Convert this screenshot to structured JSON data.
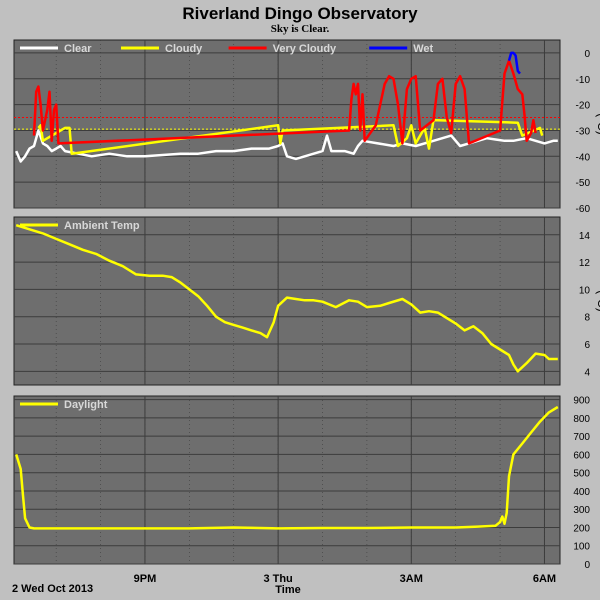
{
  "title": "Riverland Dingo Observatory",
  "subtitle": "Sky is Clear.",
  "date_label": "2 Wed Oct 2013",
  "x_axis_label": "Time",
  "x_ticks": [
    {
      "label": "9PM",
      "t": 21
    },
    {
      "label": "3 Thu",
      "t": 24
    },
    {
      "label": "3AM",
      "t": 27
    },
    {
      "label": "6AM",
      "t": 30
    }
  ],
  "colors": {
    "plot_bg": "#6e6e6e",
    "grid": "#3c3c3c",
    "clear": "#ffffff",
    "cloudy": "#ffff00",
    "very_cloudy": "#ff0000",
    "wet": "#0000ff",
    "temp": "#ffff00",
    "daylight": "#ffff00"
  },
  "chart_data": [
    {
      "type": "line",
      "name": "sky",
      "y_unit": "(°C)",
      "ylim": [
        -60,
        5
      ],
      "yticks": [
        0,
        -10,
        -20,
        -30,
        -40,
        -50,
        -60
      ],
      "xlim": [
        18.05,
        30.35
      ],
      "grid": true,
      "legend": {
        "placement": "top-left",
        "entries": [
          "Clear",
          "Cloudy",
          "Very Cloudy",
          "Wet"
        ]
      },
      "thresholds": [
        {
          "value": -25,
          "color": "#ff0000"
        },
        {
          "value": -29.5,
          "color": "#ffff00"
        }
      ],
      "series": [
        {
          "name": "Clear",
          "color_key": "clear",
          "points": [
            [
              18.1,
              -38
            ],
            [
              18.2,
              -42
            ],
            [
              18.3,
              -40
            ],
            [
              18.4,
              -37
            ],
            [
              18.5,
              -36
            ],
            [
              18.6,
              -30
            ],
            [
              18.7,
              -35
            ],
            [
              18.8,
              -36
            ],
            [
              18.9,
              -38
            ],
            [
              19.0,
              -37
            ],
            [
              19.1,
              -36
            ],
            [
              19.2,
              -38
            ],
            [
              19.5,
              -39
            ],
            [
              19.8,
              -40
            ],
            [
              20.2,
              -39
            ],
            [
              20.6,
              -40
            ],
            [
              21.0,
              -40
            ],
            [
              21.4,
              -39.5
            ],
            [
              21.8,
              -39
            ],
            [
              22.2,
              -39
            ],
            [
              22.6,
              -38
            ],
            [
              23.0,
              -38
            ],
            [
              23.4,
              -37
            ],
            [
              23.8,
              -37
            ],
            [
              24.0,
              -36
            ],
            [
              24.1,
              -35
            ],
            [
              24.2,
              -40
            ],
            [
              24.4,
              -41
            ],
            [
              24.6,
              -40
            ],
            [
              24.8,
              -39
            ],
            [
              25.0,
              -38
            ],
            [
              25.1,
              -32
            ],
            [
              25.2,
              -38
            ],
            [
              25.5,
              -38
            ],
            [
              25.7,
              -39
            ],
            [
              25.8,
              -36
            ],
            [
              25.9,
              -34
            ],
            [
              26.6,
              -36
            ],
            [
              26.8,
              -35
            ],
            [
              27.1,
              -36
            ],
            [
              27.5,
              -34
            ],
            [
              27.9,
              -32
            ],
            [
              28.1,
              -36
            ],
            [
              28.3,
              -35
            ],
            [
              28.5,
              -34
            ],
            [
              28.7,
              -33
            ],
            [
              28.9,
              -33.5
            ],
            [
              29.1,
              -34
            ],
            [
              29.3,
              -34
            ],
            [
              29.6,
              -33
            ],
            [
              29.8,
              -34
            ],
            [
              30.0,
              -35
            ],
            [
              30.2,
              -34
            ],
            [
              30.3,
              -34
            ]
          ]
        },
        {
          "name": "Cloudy",
          "color_key": "cloudy",
          "points": [
            [
              18.6,
              -29
            ],
            [
              18.65,
              -28
            ],
            [
              18.7,
              -34
            ],
            [
              19.2,
              -29
            ],
            [
              19.3,
              -29
            ],
            [
              19.35,
              -39
            ],
            [
              24.0,
              -28
            ],
            [
              24.05,
              -35
            ],
            [
              24.1,
              -30
            ],
            [
              26.6,
              -28
            ],
            [
              26.7,
              -36
            ],
            [
              26.9,
              -33
            ],
            [
              27.0,
              -28
            ],
            [
              27.1,
              -35
            ],
            [
              27.3,
              -29
            ],
            [
              27.4,
              -37
            ],
            [
              27.5,
              -26
            ],
            [
              29.4,
              -27
            ],
            [
              29.5,
              -32
            ],
            [
              29.9,
              -29
            ],
            [
              29.95,
              -32
            ]
          ]
        },
        {
          "name": "Very Cloudy",
          "color_key": "very_cloudy",
          "points": [
            [
              18.5,
              -32
            ],
            [
              18.55,
              -15
            ],
            [
              18.6,
              -13
            ],
            [
              18.65,
              -20
            ],
            [
              18.7,
              -30
            ],
            [
              18.8,
              -22
            ],
            [
              18.85,
              -15
            ],
            [
              18.9,
              -34
            ],
            [
              18.95,
              -22
            ],
            [
              19.0,
              -20
            ],
            [
              19.05,
              -35
            ],
            [
              25.6,
              -30
            ],
            [
              25.65,
              -18
            ],
            [
              25.7,
              -12
            ],
            [
              25.75,
              -16
            ],
            [
              25.8,
              -12
            ],
            [
              25.85,
              -30
            ],
            [
              25.9,
              -16
            ],
            [
              25.95,
              -34
            ],
            [
              26.2,
              -28
            ],
            [
              26.3,
              -20
            ],
            [
              26.4,
              -12
            ],
            [
              26.5,
              -9
            ],
            [
              26.6,
              -10
            ],
            [
              26.7,
              -20
            ],
            [
              26.8,
              -35
            ],
            [
              26.9,
              -14
            ],
            [
              27.0,
              -10
            ],
            [
              27.1,
              -9
            ],
            [
              27.2,
              -30
            ],
            [
              27.5,
              -26
            ],
            [
              27.6,
              -12
            ],
            [
              27.7,
              -10
            ],
            [
              27.8,
              -25
            ],
            [
              27.9,
              -31
            ],
            [
              28.0,
              -12
            ],
            [
              28.1,
              -9
            ],
            [
              28.2,
              -14
            ],
            [
              28.3,
              -35
            ],
            [
              29.0,
              -30
            ],
            [
              29.1,
              -8
            ],
            [
              29.2,
              -3
            ],
            [
              29.3,
              -8
            ],
            [
              29.4,
              -14
            ],
            [
              29.5,
              -16
            ],
            [
              29.55,
              -24
            ],
            [
              29.6,
              -34
            ],
            [
              29.7,
              -31
            ],
            [
              29.75,
              -26
            ],
            [
              29.8,
              -31
            ]
          ]
        },
        {
          "name": "Wet",
          "color_key": "wet",
          "points": [
            [
              29.2,
              -3
            ],
            [
              29.25,
              0
            ],
            [
              29.3,
              0
            ],
            [
              29.35,
              -1
            ],
            [
              29.4,
              -7
            ],
            [
              29.45,
              -8
            ]
          ]
        }
      ]
    },
    {
      "type": "line",
      "name": "ambient",
      "y_unit": "(°C)",
      "ylim": [
        3,
        15.3
      ],
      "yticks": [
        14,
        12,
        10,
        8,
        6,
        4
      ],
      "xlim": [
        18.05,
        30.35
      ],
      "grid": true,
      "legend": {
        "placement": "top-left",
        "entries": [
          "Ambient Temp"
        ]
      },
      "series": [
        {
          "name": "Ambient Temp",
          "color_key": "temp",
          "points": [
            [
              18.1,
              14.7
            ],
            [
              18.4,
              14.4
            ],
            [
              18.7,
              14.1
            ],
            [
              19.0,
              13.7
            ],
            [
              19.3,
              13.3
            ],
            [
              19.6,
              12.9
            ],
            [
              19.9,
              12.6
            ],
            [
              20.2,
              12.1
            ],
            [
              20.5,
              11.7
            ],
            [
              20.8,
              11.1
            ],
            [
              21.1,
              11.0
            ],
            [
              21.4,
              11.0
            ],
            [
              21.6,
              10.9
            ],
            [
              21.8,
              10.5
            ],
            [
              22.0,
              10.0
            ],
            [
              22.2,
              9.5
            ],
            [
              22.4,
              8.8
            ],
            [
              22.6,
              8.0
            ],
            [
              22.8,
              7.6
            ],
            [
              23.0,
              7.4
            ],
            [
              23.2,
              7.2
            ],
            [
              23.4,
              7.0
            ],
            [
              23.6,
              6.8
            ],
            [
              23.75,
              6.5
            ],
            [
              23.9,
              7.6
            ],
            [
              24.0,
              8.8
            ],
            [
              24.2,
              9.4
            ],
            [
              24.4,
              9.3
            ],
            [
              24.6,
              9.2
            ],
            [
              24.8,
              9.2
            ],
            [
              25.0,
              9.1
            ],
            [
              25.3,
              8.7
            ],
            [
              25.6,
              9.2
            ],
            [
              25.8,
              9.1
            ],
            [
              26.0,
              8.7
            ],
            [
              26.3,
              8.8
            ],
            [
              26.5,
              9.0
            ],
            [
              26.8,
              9.3
            ],
            [
              27.0,
              8.9
            ],
            [
              27.2,
              8.3
            ],
            [
              27.4,
              8.4
            ],
            [
              27.6,
              8.3
            ],
            [
              27.8,
              7.9
            ],
            [
              28.0,
              7.5
            ],
            [
              28.2,
              7.0
            ],
            [
              28.4,
              7.3
            ],
            [
              28.6,
              6.8
            ],
            [
              28.8,
              6.0
            ],
            [
              29.0,
              5.6
            ],
            [
              29.2,
              5.2
            ],
            [
              29.3,
              4.5
            ],
            [
              29.4,
              4.0
            ],
            [
              29.6,
              4.6
            ],
            [
              29.8,
              5.3
            ],
            [
              30.0,
              5.2
            ],
            [
              30.1,
              4.9
            ],
            [
              30.3,
              4.9
            ]
          ]
        }
      ]
    },
    {
      "type": "line",
      "name": "daylight",
      "y_unit": "",
      "ylim": [
        0,
        920
      ],
      "yticks": [
        900,
        800,
        700,
        600,
        500,
        400,
        300,
        200,
        100,
        0
      ],
      "xlim": [
        18.05,
        30.35
      ],
      "grid": true,
      "legend": {
        "placement": "top-left",
        "entries": [
          "Daylight"
        ]
      },
      "series": [
        {
          "name": "Daylight",
          "color_key": "daylight",
          "points": [
            [
              18.1,
              600
            ],
            [
              18.2,
              520
            ],
            [
              18.25,
              380
            ],
            [
              18.3,
              250
            ],
            [
              18.4,
              200
            ],
            [
              18.5,
              195
            ],
            [
              19.0,
              195
            ],
            [
              20.0,
              195
            ],
            [
              21.0,
              195
            ],
            [
              22.0,
              195
            ],
            [
              23.0,
              200
            ],
            [
              24.0,
              195
            ],
            [
              25.0,
              197
            ],
            [
              26.0,
              197
            ],
            [
              27.0,
              200
            ],
            [
              28.0,
              200
            ],
            [
              28.5,
              205
            ],
            [
              28.9,
              210
            ],
            [
              29.0,
              230
            ],
            [
              29.05,
              260
            ],
            [
              29.1,
              220
            ],
            [
              29.15,
              280
            ],
            [
              29.2,
              480
            ],
            [
              29.3,
              600
            ],
            [
              29.5,
              660
            ],
            [
              29.7,
              720
            ],
            [
              29.9,
              780
            ],
            [
              30.1,
              830
            ],
            [
              30.3,
              860
            ]
          ]
        }
      ]
    }
  ]
}
